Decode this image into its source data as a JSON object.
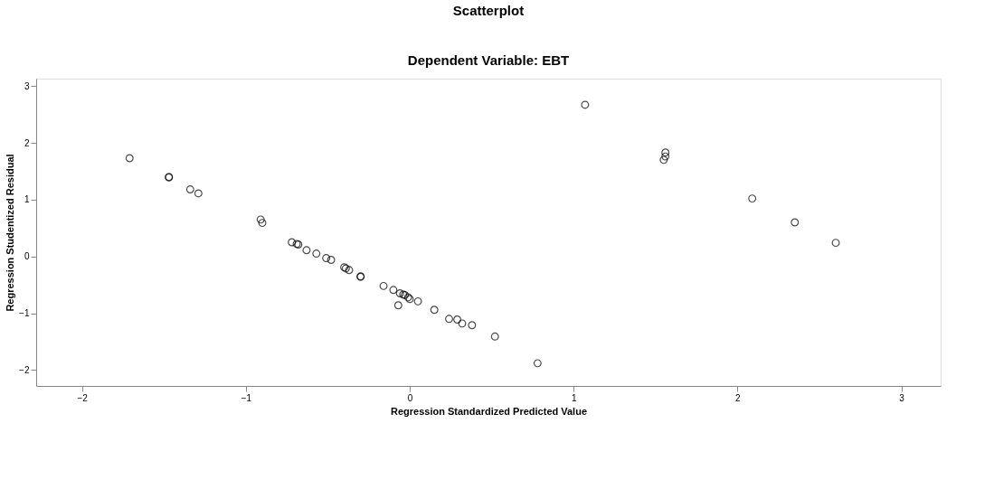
{
  "chart_data": {
    "type": "scatter",
    "title": "Scatterplot",
    "subtitle": "Dependent Variable: EBT",
    "xlabel": "Regression Standardized Predicted Value",
    "ylabel": "Regression Studentized Residual",
    "x": [
      -1.71,
      -1.47,
      -1.47,
      -1.34,
      -1.29,
      -0.91,
      -0.9,
      -0.72,
      -0.69,
      -0.68,
      -0.63,
      -0.57,
      -0.51,
      -0.48,
      -0.4,
      -0.39,
      -0.37,
      -0.3,
      -0.3,
      -0.16,
      -0.1,
      -0.06,
      -0.04,
      -0.03,
      -0.01,
      0.0,
      -0.07,
      0.05,
      0.15,
      0.24,
      0.29,
      0.32,
      0.38,
      0.52,
      0.78,
      1.07,
      1.56,
      1.56,
      1.55,
      2.09,
      2.35,
      2.6
    ],
    "series": [
      {
        "color": "#000000",
        "values": [
          1.73,
          1.4,
          1.39,
          1.18,
          1.11,
          0.65,
          0.59,
          0.25,
          0.22,
          0.21,
          0.11,
          0.05,
          -0.03,
          -0.06,
          -0.19,
          -0.21,
          -0.24,
          -0.35,
          -0.36,
          -0.52,
          -0.59,
          -0.65,
          -0.67,
          -0.68,
          -0.72,
          -0.75,
          -0.86,
          -0.79,
          -0.94,
          -1.1,
          -1.11,
          -1.18,
          -1.21,
          -1.41,
          -1.88,
          2.67,
          1.83,
          1.76,
          1.7,
          1.02,
          0.6,
          0.24
        ]
      }
    ],
    "xlim": [
      -2.28,
      3.24
    ],
    "ylim": [
      -2.28,
      3.13
    ],
    "xticks": [
      -2,
      -1,
      0,
      1,
      2,
      3
    ],
    "yticks": [
      -2,
      -1,
      0,
      1,
      2,
      3
    ],
    "grid": false,
    "marker": "circle"
  }
}
